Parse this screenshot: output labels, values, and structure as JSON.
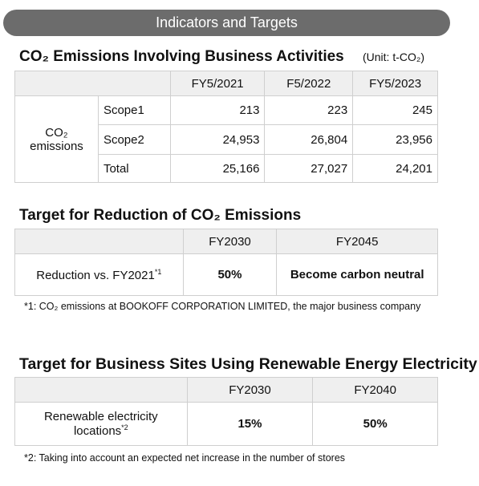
{
  "header": {
    "title": "Indicators and Targets"
  },
  "section1": {
    "title": "CO₂ Emissions Involving Business Activities",
    "unit": "(Unit: t-CO₂)",
    "table": {
      "columns": [
        "FY5/2021",
        "F5/2022",
        "FY5/2023"
      ],
      "group": "CO₂ emissions",
      "rows": [
        [
          "Scope1",
          "213",
          "223",
          "245"
        ],
        [
          "Scope2",
          "24,953",
          "26,804",
          "23,956"
        ],
        [
          "Total",
          "25,166",
          "27,027",
          "24,201"
        ]
      ]
    }
  },
  "section2": {
    "title": "Target for Reduction of CO₂ Emissions",
    "table": {
      "columns": [
        "FY2030",
        "FY2045"
      ],
      "rows": [
        {
          "label": "Reduction vs. FY2021",
          "note_ref": "*1",
          "values": [
            "50%",
            "Become carbon neutral"
          ]
        }
      ]
    },
    "footnote": "*1: CO₂ emissions at BOOKOFF CORPORATION LIMITED, the major business company"
  },
  "section3": {
    "title": "Target for Business Sites Using Renewable Energy Electricity",
    "table": {
      "columns": [
        "FY2030",
        "FY2040"
      ],
      "rows": [
        {
          "label": "Renewable electricity locations",
          "note_ref": "*2",
          "values": [
            "15%",
            "50%"
          ]
        }
      ]
    },
    "footnote": "*2: Taking into account an expected net increase in the number of stores"
  }
}
